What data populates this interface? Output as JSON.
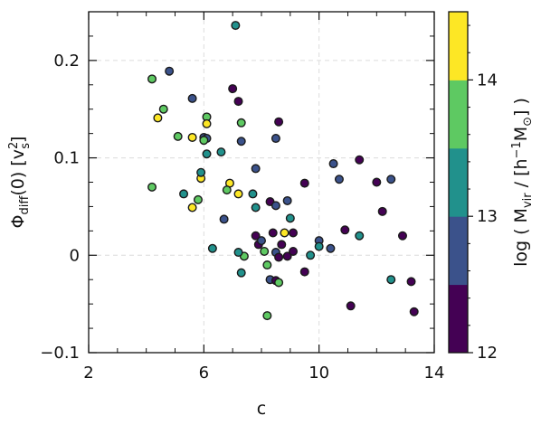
{
  "chart_data": {
    "type": "scatter",
    "xlabel": "c",
    "ylabel": "Φdiff(0) [v²s]",
    "xlim": [
      2,
      14
    ],
    "ylim": [
      -0.1,
      0.25
    ],
    "x_ticks": [
      2,
      6,
      10,
      14
    ],
    "x_tick_labels": [
      "2",
      "6",
      "10",
      "14"
    ],
    "y_ticks": [
      -0.1,
      0,
      0.1,
      0.2
    ],
    "y_tick_labels": [
      "−0.1",
      "0",
      "0.1",
      "0.2"
    ],
    "grid": true,
    "colorbar": {
      "label": "log ( Mvir / [h⁻¹M☉] )",
      "range": [
        12,
        14.5
      ],
      "ticks": [
        12,
        13,
        14
      ],
      "tick_labels": [
        "12",
        "13",
        "14"
      ],
      "colors": [
        "#440154",
        "#3b528b",
        "#21918c",
        "#5ec962",
        "#fde725"
      ]
    },
    "points": [
      {
        "x": 7.1,
        "y": 0.236,
        "c": 13.2
      },
      {
        "x": 4.2,
        "y": 0.181,
        "c": 13.7
      },
      {
        "x": 4.8,
        "y": 0.189,
        "c": 12.9
      },
      {
        "x": 4.6,
        "y": 0.15,
        "c": 13.7
      },
      {
        "x": 4.4,
        "y": 0.141,
        "c": 14.2
      },
      {
        "x": 5.6,
        "y": 0.161,
        "c": 12.7
      },
      {
        "x": 5.1,
        "y": 0.122,
        "c": 13.7
      },
      {
        "x": 5.6,
        "y": 0.121,
        "c": 14.2
      },
      {
        "x": 6.1,
        "y": 0.142,
        "c": 13.6
      },
      {
        "x": 6.1,
        "y": 0.135,
        "c": 14.2
      },
      {
        "x": 6.0,
        "y": 0.121,
        "c": 12.9
      },
      {
        "x": 6.1,
        "y": 0.12,
        "c": 12.7
      },
      {
        "x": 6.0,
        "y": 0.118,
        "c": 13.7
      },
      {
        "x": 6.1,
        "y": 0.104,
        "c": 13.4
      },
      {
        "x": 7.0,
        "y": 0.171,
        "c": 12.2
      },
      {
        "x": 7.2,
        "y": 0.158,
        "c": 12.2
      },
      {
        "x": 7.3,
        "y": 0.136,
        "c": 13.7
      },
      {
        "x": 7.3,
        "y": 0.117,
        "c": 12.9
      },
      {
        "x": 8.6,
        "y": 0.137,
        "c": 12.2
      },
      {
        "x": 8.5,
        "y": 0.12,
        "c": 12.7
      },
      {
        "x": 6.6,
        "y": 0.106,
        "c": 13.4
      },
      {
        "x": 4.2,
        "y": 0.07,
        "c": 13.7
      },
      {
        "x": 5.3,
        "y": 0.063,
        "c": 13.4
      },
      {
        "x": 5.6,
        "y": 0.049,
        "c": 14.2
      },
      {
        "x": 5.8,
        "y": 0.057,
        "c": 13.7
      },
      {
        "x": 5.9,
        "y": 0.079,
        "c": 14.2
      },
      {
        "x": 5.9,
        "y": 0.085,
        "c": 13.4
      },
      {
        "x": 6.9,
        "y": 0.074,
        "c": 14.2
      },
      {
        "x": 6.8,
        "y": 0.067,
        "c": 13.7
      },
      {
        "x": 7.2,
        "y": 0.063,
        "c": 14.2
      },
      {
        "x": 6.7,
        "y": 0.037,
        "c": 12.7
      },
      {
        "x": 6.3,
        "y": 0.007,
        "c": 13.4
      },
      {
        "x": 7.3,
        "y": -0.018,
        "c": 13.4
      },
      {
        "x": 7.4,
        "y": -0.001,
        "c": 13.7
      },
      {
        "x": 7.2,
        "y": 0.003,
        "c": 13.4
      },
      {
        "x": 7.7,
        "y": 0.063,
        "c": 13.4
      },
      {
        "x": 7.8,
        "y": 0.089,
        "c": 12.7
      },
      {
        "x": 7.8,
        "y": 0.049,
        "c": 13.4
      },
      {
        "x": 7.8,
        "y": 0.02,
        "c": 12.2
      },
      {
        "x": 7.9,
        "y": 0.011,
        "c": 12.4
      },
      {
        "x": 8.0,
        "y": 0.015,
        "c": 12.9
      },
      {
        "x": 8.1,
        "y": 0.004,
        "c": 13.7
      },
      {
        "x": 8.2,
        "y": -0.01,
        "c": 13.7
      },
      {
        "x": 8.3,
        "y": 0.055,
        "c": 12.2
      },
      {
        "x": 8.4,
        "y": 0.023,
        "c": 12.2
      },
      {
        "x": 8.5,
        "y": 0.051,
        "c": 12.7
      },
      {
        "x": 8.5,
        "y": 0.003,
        "c": 12.9
      },
      {
        "x": 8.6,
        "y": -0.002,
        "c": 12.2
      },
      {
        "x": 8.7,
        "y": 0.011,
        "c": 12.2
      },
      {
        "x": 8.8,
        "y": 0.023,
        "c": 14.2
      },
      {
        "x": 8.9,
        "y": 0.056,
        "c": 12.7
      },
      {
        "x": 8.9,
        "y": -0.001,
        "c": 12.2
      },
      {
        "x": 9.0,
        "y": 0.038,
        "c": 13.4
      },
      {
        "x": 9.1,
        "y": 0.023,
        "c": 12.4
      },
      {
        "x": 9.1,
        "y": 0.004,
        "c": 12.4
      },
      {
        "x": 8.3,
        "y": -0.025,
        "c": 12.7
      },
      {
        "x": 8.5,
        "y": -0.026,
        "c": 12.4
      },
      {
        "x": 8.6,
        "y": -0.028,
        "c": 13.7
      },
      {
        "x": 8.2,
        "y": -0.062,
        "c": 13.7
      },
      {
        "x": 9.5,
        "y": 0.074,
        "c": 12.2
      },
      {
        "x": 9.5,
        "y": -0.017,
        "c": 12.2
      },
      {
        "x": 9.7,
        "y": 0.0,
        "c": 13.4
      },
      {
        "x": 10.0,
        "y": 0.015,
        "c": 12.7
      },
      {
        "x": 10.0,
        "y": 0.009,
        "c": 13.4
      },
      {
        "x": 10.4,
        "y": 0.007,
        "c": 12.7
      },
      {
        "x": 10.5,
        "y": 0.094,
        "c": 12.7
      },
      {
        "x": 10.7,
        "y": 0.078,
        "c": 12.7
      },
      {
        "x": 10.9,
        "y": 0.026,
        "c": 12.2
      },
      {
        "x": 11.1,
        "y": -0.052,
        "c": 12.2
      },
      {
        "x": 11.4,
        "y": 0.098,
        "c": 12.2
      },
      {
        "x": 11.4,
        "y": 0.02,
        "c": 13.4
      },
      {
        "x": 12.0,
        "y": 0.075,
        "c": 12.2
      },
      {
        "x": 12.2,
        "y": 0.045,
        "c": 12.2
      },
      {
        "x": 12.5,
        "y": 0.078,
        "c": 12.7
      },
      {
        "x": 12.5,
        "y": -0.025,
        "c": 13.4
      },
      {
        "x": 12.9,
        "y": 0.02,
        "c": 12.2
      },
      {
        "x": 13.2,
        "y": -0.027,
        "c": 12.2
      },
      {
        "x": 13.3,
        "y": -0.058,
        "c": 12.2
      }
    ]
  }
}
